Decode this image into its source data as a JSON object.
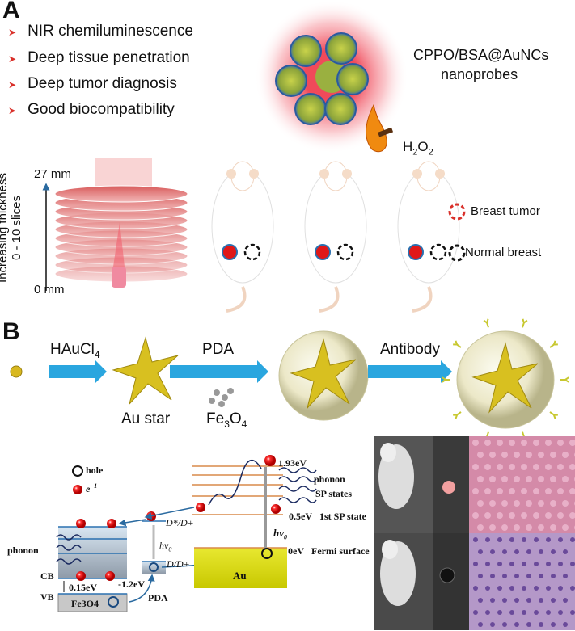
{
  "panel_a": {
    "label": "A",
    "bullets": [
      "NIR chemiluminescence",
      "Deep tissue penetration",
      "Deep tumor diagnosis",
      "Good biocompatibility"
    ],
    "probe_name": "CPPO/BSA@AuNCs",
    "probe_type": "nanoprobes",
    "h2o2": {
      "base": "H",
      "sub1": "2",
      "mid": "O",
      "sub2": "2"
    },
    "thickness_top": "27 mm",
    "thickness_bottom": "0 mm",
    "axis_label_line1": "Increasing thickness",
    "axis_label_line2": "0 - 10 slices",
    "legend_tumor": "Breast tumor",
    "legend_normal": "Normal breast",
    "colors": {
      "tumor": "#d9302a",
      "glow": "#f06070",
      "tissue": "#e58a86"
    }
  },
  "panel_b": {
    "label": "B",
    "step1": {
      "base": "HAuCl",
      "sub": "4"
    },
    "au_star": "Au star",
    "step2": "PDA",
    "fe3o4": {
      "a": "Fe",
      "s1": "3",
      "b": "O",
      "s2": "4"
    },
    "step3": "Antibody",
    "energy": {
      "hole": "hole",
      "electron": "e",
      "electron_sup": "−1",
      "e193": "1.93eV",
      "phonon_right": "phonon",
      "sp_states": "SP states",
      "e05": "0.5eV",
      "first_sp": "1st SP state",
      "hv_right": "hv",
      "hv_sub": "0",
      "e0": "0eV",
      "fermi": "Fermi surface",
      "au": "Au",
      "d_star": "D*/D+",
      "d_plus": "D/D+",
      "hv_mid": "hv",
      "phonon_left": "phonon",
      "cb": "CB",
      "vb": "VB",
      "e015": "0.15eV",
      "em12": "-1.2eV",
      "fe3o4": "Fe3O4",
      "pda": "PDA"
    },
    "colors": {
      "arrow": "#2aa6df",
      "gold": "#e8d000",
      "level": "#d98a4a",
      "electron": "#e01010"
    }
  }
}
